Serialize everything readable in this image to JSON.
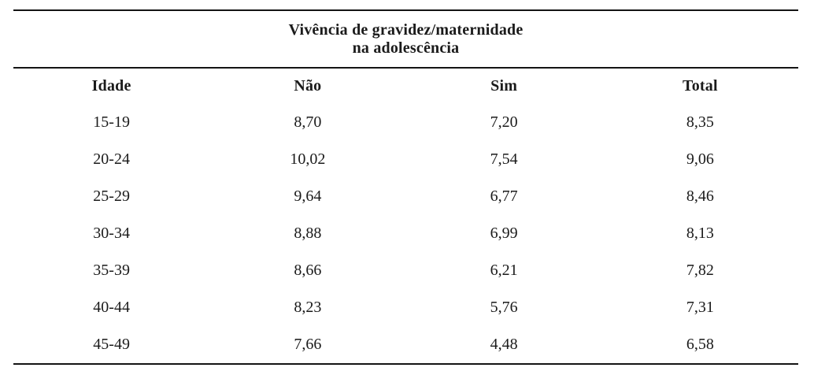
{
  "table": {
    "title_line1": "Vivência de gravidez/maternidade",
    "title_line2": "na adolescência",
    "columns": [
      "Idade",
      "Não",
      "Sim",
      "Total"
    ],
    "row_keys": [
      "idade",
      "nao",
      "sim",
      "total"
    ],
    "rows": [
      {
        "idade": "15-19",
        "nao": "8,70",
        "sim": "7,20",
        "total": "8,35"
      },
      {
        "idade": "20-24",
        "nao": "10,02",
        "sim": "7,54",
        "total": "9,06"
      },
      {
        "idade": "25-29",
        "nao": "9,64",
        "sim": "6,77",
        "total": "8,46"
      },
      {
        "idade": "30-34",
        "nao": "8,88",
        "sim": "6,99",
        "total": "8,13"
      },
      {
        "idade": "35-39",
        "nao": "8,66",
        "sim": "6,21",
        "total": "7,82"
      },
      {
        "idade": "40-44",
        "nao": "8,23",
        "sim": "5,76",
        "total": "7,31"
      },
      {
        "idade": "45-49",
        "nao": "7,66",
        "sim": "4,48",
        "total": "6,58"
      }
    ],
    "text_color": "#1b1b1b",
    "rule_color": "#141414",
    "background_color": "#ffffff"
  }
}
